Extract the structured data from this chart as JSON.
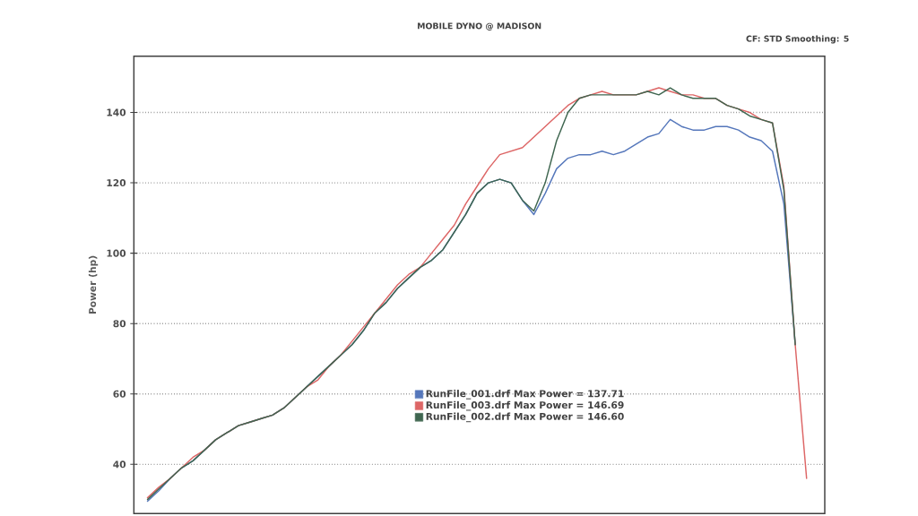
{
  "chart_data": {
    "type": "line",
    "title": "MOBILE DYNO @ MADISON",
    "ylabel": "Power (hp)",
    "annotations": [
      "CF: STD Smoothing: 5"
    ],
    "categories": [
      null,
      null,
      null,
      null,
      null,
      null,
      null,
      null,
      null,
      null,
      null,
      null,
      null,
      null,
      null,
      null,
      null,
      null,
      null,
      null,
      null,
      null,
      null,
      null,
      null,
      null,
      null,
      null,
      null,
      null,
      null,
      null,
      null,
      null,
      null,
      null,
      null,
      null,
      null,
      null,
      null,
      null,
      null,
      null,
      null,
      null,
      null,
      null,
      null,
      null,
      null,
      null,
      null,
      null,
      null,
      null,
      null,
      null,
      null
    ],
    "series": [
      {
        "name": "RunFile_001.drf Max Power = 137.71",
        "color": "#5577bb",
        "values": [
          29.5,
          32.5,
          36,
          39,
          41,
          44,
          47,
          49,
          51,
          52,
          53,
          54,
          56,
          59,
          62,
          65,
          68,
          71,
          74,
          78,
          83,
          86,
          90,
          93,
          96,
          98,
          101,
          106,
          111,
          117,
          120,
          121,
          120,
          115,
          111,
          117,
          124,
          127,
          128,
          128,
          129,
          128,
          129,
          131,
          133,
          134,
          138,
          136,
          135,
          135,
          136,
          136,
          135,
          133,
          132,
          129,
          114,
          74,
          null
        ]
      },
      {
        "name": "RunFile_003.drf Max Power = 146.69",
        "color": "#dd6666",
        "values": [
          30.5,
          33.5,
          36,
          39,
          42,
          44,
          47,
          49,
          51,
          52,
          53,
          54,
          56,
          59,
          62,
          64,
          68,
          71,
          75,
          79,
          83,
          87,
          91,
          94,
          96,
          100,
          104,
          108,
          114,
          119,
          124,
          128,
          129,
          130,
          133,
          136,
          139,
          142,
          144,
          145,
          146,
          145,
          145,
          145,
          146,
          147,
          146,
          145,
          145,
          144,
          144,
          142,
          141,
          140,
          138,
          137,
          119,
          74,
          36
        ]
      },
      {
        "name": "RunFile_002.drf Max Power = 146.60",
        "color": "#3f6650",
        "values": [
          30,
          33,
          36,
          39,
          41,
          44,
          47,
          49,
          51,
          52,
          53,
          54,
          56,
          59,
          62,
          65,
          68,
          71,
          74,
          78,
          83,
          86,
          90,
          93,
          96,
          98,
          101,
          106,
          111,
          117,
          120,
          121,
          120,
          115,
          112,
          120,
          132,
          140,
          144,
          145,
          145,
          145,
          145,
          145,
          146,
          145,
          147,
          145,
          144,
          144,
          144,
          142,
          141,
          139,
          138,
          137,
          118,
          74,
          null
        ]
      }
    ],
    "ylim": [
      26,
      156
    ],
    "yticks": [
      40,
      60,
      80,
      100,
      120,
      140
    ],
    "grid": "y",
    "legend": "bottom"
  }
}
